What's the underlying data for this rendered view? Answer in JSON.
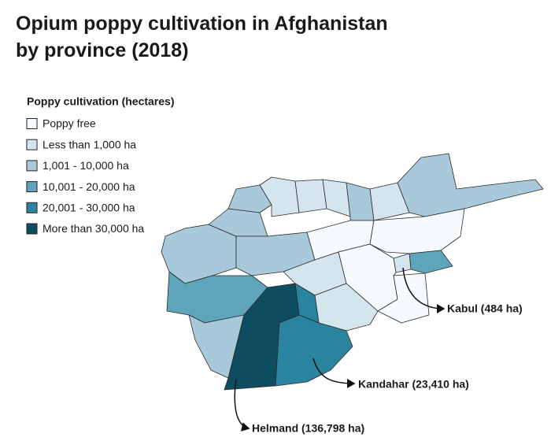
{
  "title_lines": [
    "Opium poppy cultivation in Afghanistan",
    "by province (2018)"
  ],
  "legend": {
    "title": "Poppy cultivation (hectares)",
    "items": [
      {
        "label": "Poppy free",
        "color": "#f7fafc"
      },
      {
        "label": "Less than 1,000 ha",
        "color": "#d5e5ed"
      },
      {
        "label": "1,001 - 10,000 ha",
        "color": "#a8c9da"
      },
      {
        "label": "10,001 - 20,000 ha",
        "color": "#5ea4bb"
      },
      {
        "label": "20,001 - 30,000 ha",
        "color": "#2a84a0"
      },
      {
        "label": "More than 30,000 ha",
        "color": "#0e4d61"
      }
    ]
  },
  "annotations": [
    {
      "text": "Kabul (484 ha)"
    },
    {
      "text": "Kandahar (23,410 ha)"
    },
    {
      "text": "Helmand (136,798 ha)"
    }
  ]
}
